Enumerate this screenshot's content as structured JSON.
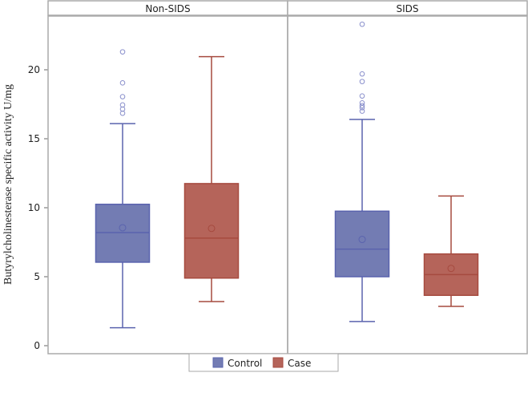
{
  "chart_data": {
    "type": "box",
    "ylabel": "Butyrylcholinesterase specific activity U/mg",
    "ylim": [
      -0.5,
      24.5
    ],
    "yticks": [
      0,
      5,
      10,
      15,
      20
    ],
    "panels": [
      {
        "title": "Non-SIDS",
        "boxes": [
          {
            "group": "Control",
            "min": 1.3,
            "q1": 6.05,
            "median": 8.2,
            "mean": 8.55,
            "q3": 10.25,
            "max": 16.1,
            "outliers": [
              21.3,
              19.05,
              18.05,
              17.45,
              17.15,
              16.85
            ]
          },
          {
            "group": "Case",
            "min": 3.2,
            "q1": 4.9,
            "median": 7.8,
            "mean": 8.5,
            "q3": 11.75,
            "max": 20.95,
            "outliers": []
          }
        ]
      },
      {
        "title": "SIDS",
        "boxes": [
          {
            "group": "Control",
            "min": 1.75,
            "q1": 5.0,
            "median": 7.0,
            "mean": 7.7,
            "q3": 9.75,
            "max": 16.4,
            "outliers": [
              23.3,
              19.7,
              19.15,
              18.1,
              17.6,
              17.4,
              17.25,
              17.0
            ]
          },
          {
            "group": "Case",
            "min": 2.85,
            "q1": 3.65,
            "median": 5.15,
            "mean": 5.6,
            "q3": 6.65,
            "max": 10.85,
            "outliers": []
          }
        ]
      }
    ],
    "legend": {
      "position": "bottom",
      "entries": [
        "Control",
        "Case"
      ]
    },
    "colors": {
      "Control": {
        "fill": "#737CB3",
        "line": "#5A63AE"
      },
      "Case": {
        "fill": "#B5645A",
        "line": "#A64A3F"
      }
    }
  }
}
